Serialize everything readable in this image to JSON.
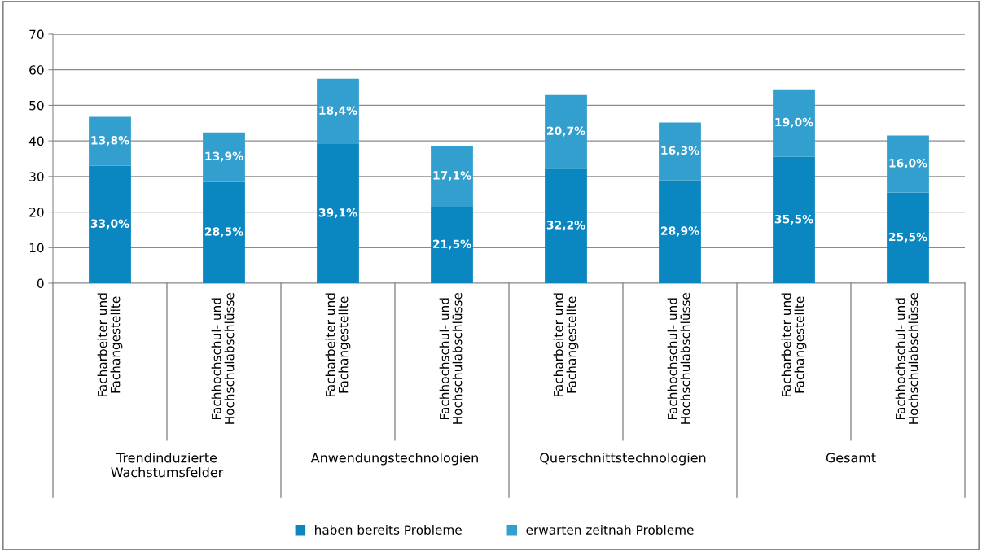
{
  "chart_data": {
    "type": "bar",
    "stacked": true,
    "categories": [
      "Facharbeiter und\nFachangestellte",
      "Fachhochschul- und\nHochschulabschlüsse",
      "Facharbeiter und\nFachangestellte",
      "Fachhochschul- und\nHochschulabschlüsse",
      "Facharbeiter und\nFachangestellte",
      "Fachhochschul- und\nHochschulabschlüsse",
      "Facharbeiter und\nFachangestellte",
      "Fachhochschul- und\nHochschulabschlüsse"
    ],
    "series": [
      {
        "name": "haben bereits Probleme",
        "color": "#0a86c0",
        "values": [
          33.0,
          28.5,
          39.1,
          21.5,
          32.2,
          28.9,
          35.5,
          25.5
        ],
        "value_labels": [
          "33,0%",
          "28,5%",
          "39,1%",
          "21,5%",
          "32,2%",
          "28,9%",
          "35,5%",
          "25,5%"
        ]
      },
      {
        "name": "erwarten zeitnah Probleme",
        "color": "#339fce",
        "values": [
          13.8,
          13.9,
          18.4,
          17.1,
          20.7,
          16.3,
          19.0,
          16.0
        ],
        "value_labels": [
          "13,8%",
          "13,9%",
          "18,4%",
          "17,1%",
          "20,7%",
          "16,3%",
          "19,0%",
          "16,0%"
        ]
      }
    ],
    "annotations": [
      "Trendinduzierte\nWachstumsfelder",
      "Anwendungstechnologien",
      "Querschnittstechnologien",
      "Gesamt"
    ],
    "ylim": [
      0,
      70
    ],
    "yticks": [
      0,
      10,
      20,
      30,
      40,
      50,
      60,
      70
    ],
    "grid": "y",
    "legend": "bottom"
  }
}
